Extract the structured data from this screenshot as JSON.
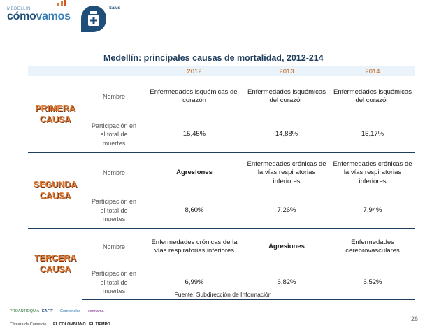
{
  "header": {
    "logo_small": "MEDELLÍN",
    "logo_main_a": "cómo",
    "logo_main_b": "vamos",
    "section_label": "Salud",
    "bars_icon": "bar-chart-icon",
    "badge_icon": "medicine-bottle-icon"
  },
  "title": "Medellín: principales causas de mortalidad, 2012-214",
  "table": {
    "years": [
      "2012",
      "2013",
      "2014"
    ],
    "groups": [
      {
        "cause": [
          "PRIMERA",
          "CAUSA"
        ],
        "name_label": "Nombre",
        "share_label": [
          "Participación en",
          "el total de",
          "muertes"
        ],
        "names": [
          "Enfermedades isquémicas del corazón",
          "Enfermedades isquémicas del corazón",
          "Enfermedades isquémicas del corazón"
        ],
        "shares": [
          "15,45%",
          "14,88%",
          "15,17%"
        ]
      },
      {
        "cause": [
          "SEGUNDA",
          "CAUSA"
        ],
        "name_label": "Nombre",
        "share_label": [
          "Participación en",
          "el total de",
          "muertes"
        ],
        "names": [
          "Agresiones",
          "Enfermedades crónicas de la vías respiratorias inferiores",
          "Enfermedades crónicas de la vías respiratorias inferiores"
        ],
        "shares": [
          "8,60%",
          "7,26%",
          "7,94%"
        ]
      },
      {
        "cause": [
          "TERCERA",
          "CAUSA"
        ],
        "name_label": "Nombre",
        "share_label": [
          "Participación en",
          "el total de",
          "muertes"
        ],
        "names": [
          "Enfermedades crónicas de la vías respiratorias inferiores",
          "Agresiones",
          "Enfermedades cerebrovasculares"
        ],
        "shares": [
          "6,99%",
          "6,82%",
          "6,52%"
        ]
      }
    ]
  },
  "source": "Fuente: Subdirección de Información",
  "sponsors": [
    "PROANTIOQUIA",
    "EAFIT",
    "Comfenalco",
    "comfama",
    "Cámara de Comercio",
    "EL COLOMBIANO",
    "EL TIEMPO"
  ],
  "page_number": "26",
  "colors": {
    "accent": "#e07b39",
    "navy": "#1f3d5c",
    "header_bg": "#eaf3f9"
  }
}
